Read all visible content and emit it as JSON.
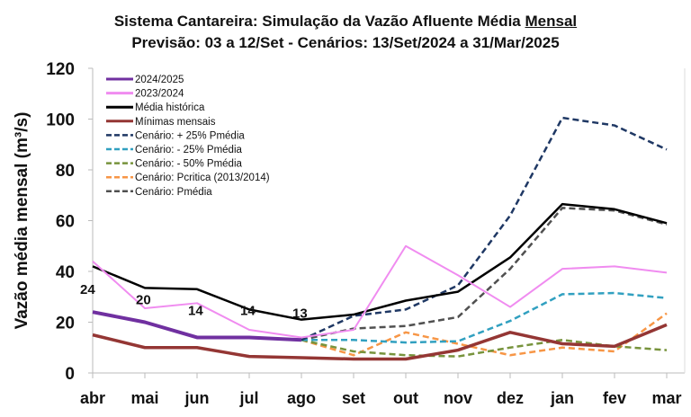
{
  "chart_data": {
    "type": "line",
    "title": "Sistema Cantareira: Simulação da Vazão Afluente Média",
    "title_underlined": "Mensal",
    "subtitle": "Previsão: 03 a 12/Set - Cenários: 13/Set/2024 a 31/Mar/2025",
    "xlabel": "",
    "ylabel": "Vazão média mensal (m³/s)",
    "ylim": [
      0,
      120
    ],
    "yticks": [
      0,
      20,
      40,
      60,
      80,
      100,
      120
    ],
    "categories": [
      "abr",
      "mai",
      "jun",
      "jul",
      "ago",
      "set",
      "out",
      "nov",
      "dez",
      "jan",
      "fev",
      "mar"
    ],
    "legend_position": "top-left",
    "grid": false,
    "series": [
      {
        "name": "2024/2025",
        "color": "#7030a0",
        "dash": false,
        "width": 4,
        "values": [
          24,
          20,
          14,
          14,
          13,
          null,
          null,
          null,
          null,
          null,
          null,
          null
        ],
        "labels": [
          "24",
          "20",
          "14",
          "14",
          "13"
        ]
      },
      {
        "name": "2023/2024",
        "color": "#f08cf0",
        "dash": false,
        "width": 2,
        "values": [
          44,
          25.5,
          27.5,
          17,
          14,
          17,
          50,
          38.5,
          26,
          41,
          42,
          39.5
        ]
      },
      {
        "name": "Média histórica",
        "color": "#000000",
        "dash": false,
        "width": 2.5,
        "values": [
          42,
          33.5,
          33,
          25,
          21,
          23,
          28.5,
          32,
          45.5,
          66.5,
          64.5,
          59
        ]
      },
      {
        "name": "Mínimas mensais",
        "color": "#943634",
        "dash": false,
        "width": 3.5,
        "values": [
          15,
          10,
          10,
          6.5,
          6,
          5.5,
          5.5,
          9,
          16,
          11.5,
          10.5,
          19
        ]
      },
      {
        "name": "Cenário: + 25% Pmédia",
        "color": "#1f3864",
        "dash": true,
        "width": 2.5,
        "values": [
          null,
          null,
          null,
          null,
          13,
          22.5,
          25,
          34.5,
          62,
          100.5,
          97.5,
          88
        ]
      },
      {
        "name": "Cenário: - 25% Pmédia",
        "color": "#31a0c0",
        "dash": true,
        "width": 2.5,
        "values": [
          null,
          null,
          null,
          null,
          13,
          13,
          12,
          12.5,
          20.5,
          31,
          31.5,
          29.5
        ]
      },
      {
        "name": "Cenário: - 50% Pmédia",
        "color": "#77933c",
        "dash": true,
        "width": 2.5,
        "values": [
          null,
          null,
          null,
          null,
          13,
          8.5,
          7,
          6.5,
          10,
          13,
          10.5,
          9
        ]
      },
      {
        "name": "Cenário: Pcritica (2013/2014)",
        "color": "#f79646",
        "dash": true,
        "width": 2.5,
        "values": [
          null,
          null,
          null,
          null,
          13,
          7,
          16,
          11.5,
          7,
          10,
          8.5,
          23.5
        ]
      },
      {
        "name": "Cenário: Pmédia",
        "color": "#505050",
        "dash": true,
        "width": 2.5,
        "values": [
          null,
          null,
          null,
          null,
          13,
          17.5,
          18.5,
          22,
          41,
          65,
          64,
          58.5
        ]
      }
    ]
  }
}
